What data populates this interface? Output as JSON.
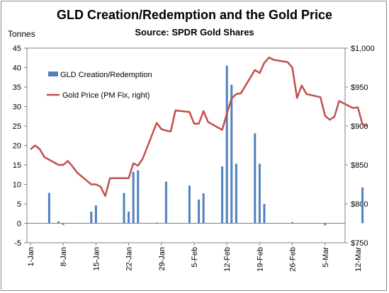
{
  "chart_data": {
    "type": "bar",
    "title": "GLD Creation/Redemption  and the Gold Price",
    "subtitle": "Source: SPDR Gold Shares",
    "ylabel": "Tonnes",
    "ylim": [
      -5,
      45
    ],
    "y_ticks": [
      "-5",
      "0",
      "5",
      "10",
      "15",
      "20",
      "25",
      "30",
      "35",
      "40",
      "45"
    ],
    "y2lim": [
      750,
      1000
    ],
    "y2_ticks": [
      "$750",
      "$800",
      "$850",
      "$900",
      "$950",
      "$1,000"
    ],
    "x_ticks": [
      "1-Jan",
      "8-Jan",
      "15-Jan",
      "22-Jan",
      "29-Jan",
      "5-Feb",
      "12-Feb",
      "19-Feb",
      "26-Feb",
      "5-Mar",
      "12-Mar"
    ],
    "grid": false,
    "legend_position": "upper-left",
    "bar_color": "#4f81bd",
    "line_color": "#c0504d",
    "series": [
      {
        "name": "GLD Creation/Redemption",
        "kind": "bar",
        "axis": "left",
        "x": [
          "2008-01-05",
          "2008-01-07",
          "2008-01-08",
          "2008-01-14",
          "2008-01-15",
          "2008-01-21",
          "2008-01-22",
          "2008-01-23",
          "2008-01-24",
          "2008-01-28",
          "2008-01-30",
          "2008-02-04",
          "2008-02-06",
          "2008-02-07",
          "2008-02-11",
          "2008-02-12",
          "2008-02-13",
          "2008-02-14",
          "2008-02-18",
          "2008-02-19",
          "2008-02-20",
          "2008-02-26",
          "2008-03-04",
          "2008-03-12"
        ],
        "values": [
          7.8,
          0.5,
          -0.4,
          3.0,
          4.6,
          7.8,
          3.0,
          13.2,
          13.6,
          0.2,
          10.7,
          9.7,
          6.1,
          7.7,
          14.6,
          40.5,
          35.6,
          15.3,
          23.1,
          15.3,
          5.0,
          0.3,
          -0.5,
          9.2
        ]
      },
      {
        "name": "Gold Price (PM Fix, right)",
        "kind": "line",
        "axis": "right",
        "x": [
          "2008-01-01",
          "2008-01-02",
          "2008-01-03",
          "2008-01-04",
          "2008-01-07",
          "2008-01-08",
          "2008-01-09",
          "2008-01-10",
          "2008-01-11",
          "2008-01-14",
          "2008-01-15",
          "2008-01-16",
          "2008-01-17",
          "2008-01-18",
          "2008-01-21",
          "2008-01-22",
          "2008-01-23",
          "2008-01-24",
          "2008-01-25",
          "2008-01-28",
          "2008-01-29",
          "2008-01-30",
          "2008-01-31",
          "2008-02-01",
          "2008-02-04",
          "2008-02-05",
          "2008-02-06",
          "2008-02-07",
          "2008-02-08",
          "2008-02-11",
          "2008-02-12",
          "2008-02-13",
          "2008-02-14",
          "2008-02-15",
          "2008-02-18",
          "2008-02-19",
          "2008-02-20",
          "2008-02-21",
          "2008-02-22",
          "2008-02-25",
          "2008-02-26",
          "2008-02-27",
          "2008-02-28",
          "2008-02-29",
          "2008-03-03",
          "2008-03-04",
          "2008-03-05",
          "2008-03-06",
          "2008-03-07",
          "2008-03-10",
          "2008-03-11",
          "2008-03-12",
          "2008-03-13"
        ],
        "values": [
          870,
          875,
          870,
          860,
          850,
          850,
          855,
          848,
          840,
          825,
          825,
          822,
          810,
          833,
          833,
          833,
          852,
          849,
          858,
          904,
          896,
          894,
          893,
          920,
          918,
          903,
          903,
          919,
          905,
          895,
          916,
          935,
          941,
          942,
          972,
          968,
          981,
          988,
          985,
          982,
          975,
          936,
          952,
          941,
          937,
          913,
          908,
          912,
          932,
          923,
          924,
          902,
          900
        ]
      }
    ]
  }
}
